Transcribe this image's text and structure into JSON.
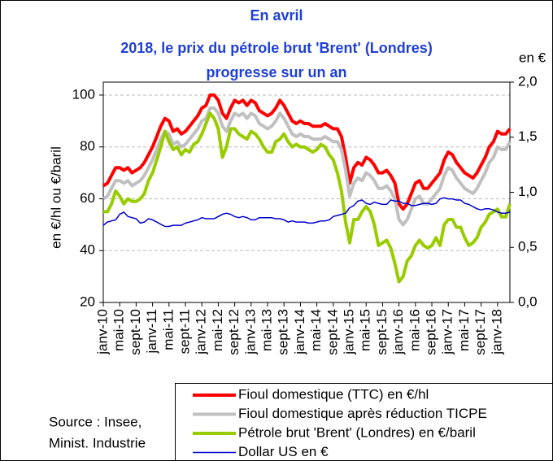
{
  "chart_data": {
    "type": "line",
    "title": [
      "En avril",
      "2018, le prix du pétrole brut 'Brent' (Londres)",
      "progresse sur un an"
    ],
    "ylabel": "en €/hl ou €/baril",
    "y2label": "en €",
    "source": [
      "Source : Insee,",
      "Minist. Industrie"
    ],
    "categories": [
      "janv-10",
      null,
      null,
      null,
      "mai-10",
      null,
      null,
      null,
      "sept-10",
      null,
      null,
      null,
      "janv-11",
      null,
      null,
      null,
      "mai-11",
      null,
      null,
      null,
      "sept-11",
      null,
      null,
      null,
      "janv-12",
      null,
      null,
      null,
      "mai-12",
      null,
      null,
      null,
      "sept-12",
      null,
      null,
      null,
      "janv-13",
      null,
      null,
      null,
      "mai-13",
      null,
      null,
      null,
      "sept-13",
      null,
      null,
      null,
      "janv-14",
      null,
      null,
      null,
      "mai-14",
      null,
      null,
      null,
      "sept-14",
      null,
      null,
      null,
      "janv-15",
      null,
      null,
      null,
      "mai-15",
      null,
      null,
      null,
      "sept-15",
      null,
      null,
      null,
      "janv-16",
      null,
      null,
      null,
      "mai-16",
      null,
      null,
      null,
      "sept-16",
      null,
      null,
      null,
      "janv-17",
      null,
      null,
      null,
      "mai-17",
      null,
      null,
      null,
      "sept-17",
      null,
      null,
      null,
      "janv-18",
      null,
      null,
      null
    ],
    "series": [
      {
        "name": "Fioul domestique (TTC) en €/hl",
        "color": "#ff0000",
        "width": 4,
        "values": [
          65,
          66,
          69,
          72,
          72,
          71,
          72,
          70,
          71,
          72,
          74,
          77,
          80,
          84,
          88,
          91,
          90,
          86,
          87,
          85,
          86,
          88,
          90,
          92,
          95,
          96,
          100,
          100,
          98,
          93,
          91,
          95,
          98,
          97,
          98,
          96,
          98,
          97,
          94,
          93,
          92,
          93,
          95,
          98,
          96,
          93,
          90,
          89,
          90,
          89,
          89,
          88,
          88,
          88,
          89,
          88,
          87,
          87,
          84,
          76,
          66,
          72,
          74,
          73,
          76,
          75,
          73,
          70,
          70,
          71,
          69,
          66,
          58,
          56,
          58,
          62,
          66,
          67,
          64,
          64,
          66,
          68,
          70,
          75,
          78,
          77,
          74,
          72,
          70,
          69,
          68,
          70,
          73,
          76,
          80,
          82,
          86,
          85,
          85,
          87
        ]
      },
      {
        "name": "Fioul domestique après réduction TICPE",
        "color": "#c0c0c0",
        "width": 4,
        "values": [
          60,
          61,
          64,
          67,
          67,
          66,
          67,
          65,
          66,
          67,
          69,
          72,
          75,
          79,
          83,
          86,
          85,
          81,
          82,
          80,
          81,
          83,
          85,
          87,
          90,
          91,
          95,
          95,
          93,
          88,
          86,
          90,
          93,
          92,
          93,
          91,
          93,
          92,
          89,
          88,
          87,
          88,
          90,
          93,
          91,
          88,
          85,
          84,
          85,
          84,
          84,
          83,
          83,
          83,
          84,
          83,
          82,
          82,
          79,
          71,
          61,
          66,
          68,
          67,
          70,
          69,
          67,
          64,
          64,
          65,
          63,
          60,
          52,
          50,
          52,
          56,
          60,
          61,
          58,
          58,
          60,
          62,
          64,
          69,
          72,
          71,
          68,
          66,
          64,
          63,
          62,
          64,
          67,
          70,
          74,
          76,
          80,
          79,
          79,
          82
        ]
      },
      {
        "name": "Pétrole brut 'Brent' (Londres) en €/baril",
        "color": "#99cc00",
        "width": 4,
        "values": [
          55,
          55,
          58,
          63,
          61,
          58,
          60,
          59,
          59,
          60,
          62,
          67,
          70,
          75,
          80,
          86,
          82,
          79,
          80,
          77,
          79,
          78,
          81,
          82,
          85,
          89,
          93,
          91,
          87,
          76,
          80,
          87,
          87,
          85,
          84,
          83,
          86,
          85,
          83,
          80,
          78,
          78,
          82,
          83,
          85,
          82,
          80,
          81,
          80,
          80,
          79,
          78,
          79,
          81,
          80,
          77,
          75,
          70,
          63,
          51,
          43,
          52,
          52,
          55,
          57,
          55,
          50,
          42,
          43,
          44,
          41,
          35,
          28,
          30,
          36,
          38,
          42,
          44,
          42,
          41,
          42,
          45,
          42,
          50,
          52,
          52,
          49,
          49,
          45,
          42,
          43,
          45,
          49,
          51,
          54,
          55,
          56,
          53,
          53,
          58
        ]
      },
      {
        "name": "Dollar US en €",
        "color": "#0000cc",
        "width": 1.5,
        "axis": "y2",
        "values": [
          0.7,
          0.73,
          0.74,
          0.75,
          0.8,
          0.82,
          0.78,
          0.77,
          0.76,
          0.72,
          0.73,
          0.76,
          0.75,
          0.73,
          0.71,
          0.69,
          0.69,
          0.7,
          0.7,
          0.7,
          0.72,
          0.73,
          0.74,
          0.75,
          0.77,
          0.76,
          0.76,
          0.76,
          0.78,
          0.8,
          0.81,
          0.8,
          0.78,
          0.77,
          0.78,
          0.77,
          0.75,
          0.75,
          0.77,
          0.77,
          0.77,
          0.77,
          0.76,
          0.76,
          0.75,
          0.73,
          0.74,
          0.73,
          0.73,
          0.73,
          0.72,
          0.72,
          0.73,
          0.74,
          0.74,
          0.75,
          0.78,
          0.79,
          0.8,
          0.81,
          0.86,
          0.88,
          0.92,
          0.93,
          0.9,
          0.89,
          0.91,
          0.9,
          0.89,
          0.89,
          0.93,
          0.92,
          0.92,
          0.9,
          0.9,
          0.88,
          0.88,
          0.89,
          0.9,
          0.9,
          0.89,
          0.9,
          0.94,
          0.95,
          0.94,
          0.94,
          0.93,
          0.93,
          0.9,
          0.89,
          0.87,
          0.85,
          0.84,
          0.85,
          0.85,
          0.84,
          0.82,
          0.81,
          0.81,
          0.82
        ]
      }
    ],
    "ylim": [
      20,
      105
    ],
    "yticks": [
      20,
      40,
      60,
      80,
      100
    ],
    "y2lim": [
      0,
      2
    ],
    "y2ticks": [
      {
        "value": 0,
        "label": "0,0"
      },
      {
        "value": 0.5,
        "label": "0,5"
      },
      {
        "value": 1,
        "label": "1,0"
      },
      {
        "value": 1.5,
        "label": "1,5"
      },
      {
        "value": 2,
        "label": "2,0"
      }
    ],
    "grid": true
  }
}
